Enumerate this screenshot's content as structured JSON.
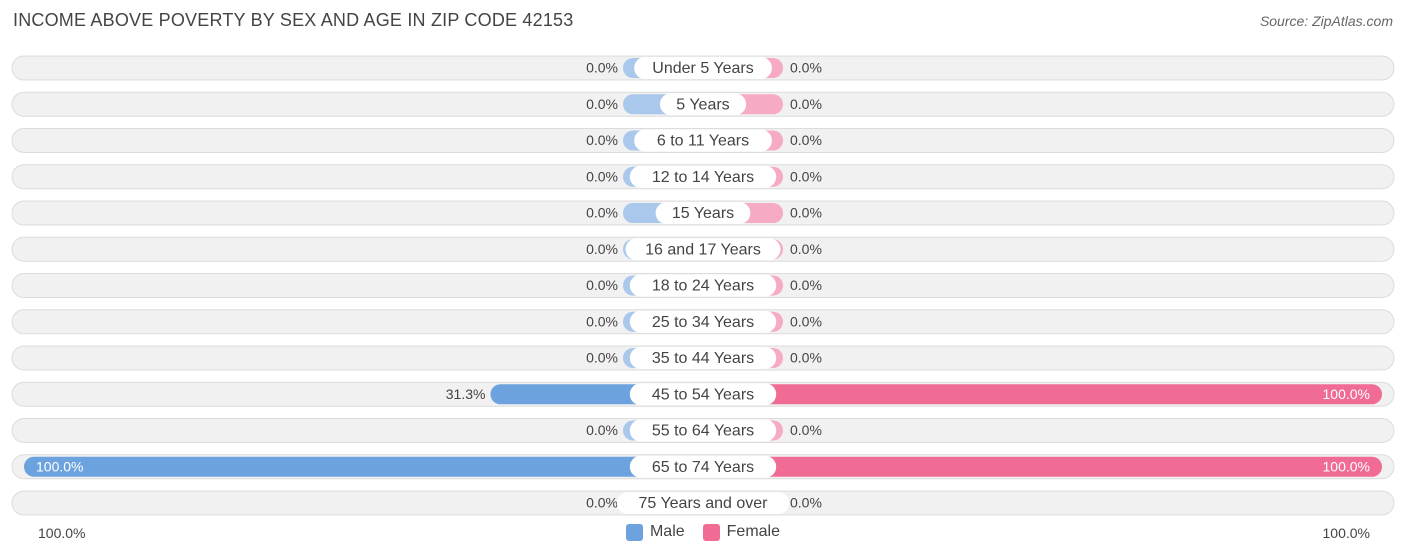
{
  "chart_data": {
    "type": "bar",
    "title": "INCOME ABOVE POVERTY BY SEX AND AGE IN ZIP CODE 42153",
    "source": "Source: ZipAtlas.com",
    "categories": [
      "Under 5 Years",
      "5 Years",
      "6 to 11 Years",
      "12 to 14 Years",
      "15 Years",
      "16 and 17 Years",
      "18 to 24 Years",
      "25 to 34 Years",
      "35 to 44 Years",
      "45 to 54 Years",
      "55 to 64 Years",
      "65 to 74 Years",
      "75 Years and over"
    ],
    "series": [
      {
        "name": "Male",
        "color": "#6ca2dd",
        "stub_color": "#a9c8ec",
        "values": [
          0,
          0,
          0,
          0,
          0,
          0,
          0,
          0,
          0,
          31.3,
          0,
          100,
          0
        ],
        "labels": [
          "0.0%",
          "0.0%",
          "0.0%",
          "0.0%",
          "0.0%",
          "0.0%",
          "0.0%",
          "0.0%",
          "0.0%",
          "31.3%",
          "0.0%",
          "100.0%",
          "0.0%"
        ]
      },
      {
        "name": "Female",
        "color": "#f06c95",
        "stub_color": "#f6aac3",
        "values": [
          0,
          0,
          0,
          0,
          0,
          0,
          0,
          0,
          0,
          100,
          0,
          100,
          0
        ],
        "labels": [
          "0.0%",
          "0.0%",
          "0.0%",
          "0.0%",
          "0.0%",
          "0.0%",
          "0.0%",
          "0.0%",
          "0.0%",
          "100.0%",
          "0.0%",
          "100.0%",
          "0.0%"
        ]
      }
    ],
    "xlim": [
      0,
      100
    ],
    "axis_left_label": "100.0%",
    "axis_right_label": "100.0%",
    "legend": [
      "Male",
      "Female"
    ],
    "colors": {
      "row_bg": "#f1f1f1",
      "row_border": "#dcdcdc",
      "text": "#444444"
    }
  }
}
